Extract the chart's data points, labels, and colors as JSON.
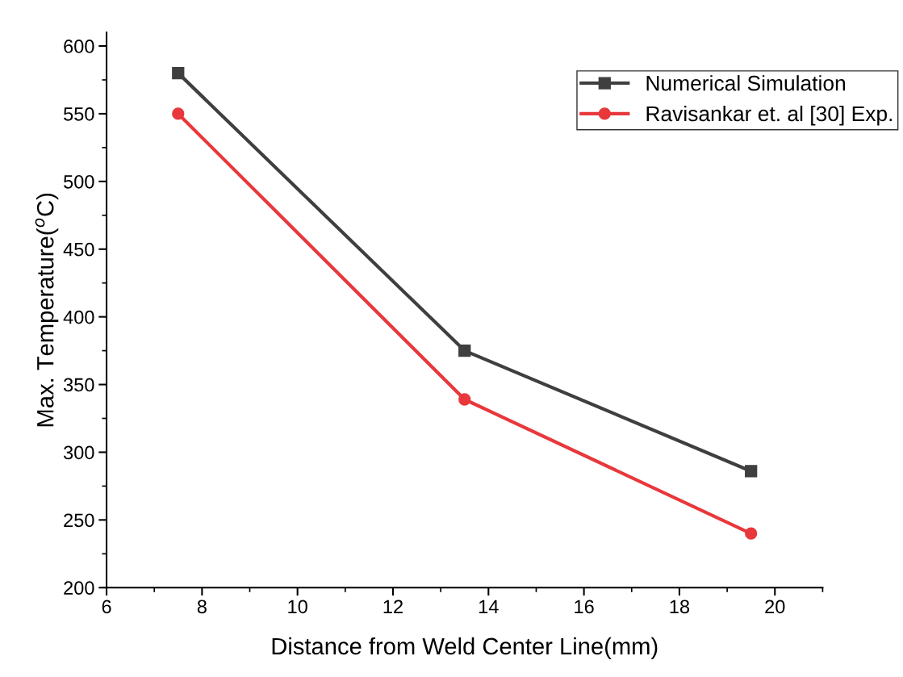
{
  "chart_data": {
    "type": "line",
    "xlabel": "Distance from Weld Center Line(mm)",
    "ylabel": "Max. Temperature($^{o}$C)",
    "x": [
      7.5,
      13.5,
      19.5
    ],
    "series": [
      {
        "name": "Numerical Simulation",
        "color": "#3f3f3f",
        "marker": "square",
        "values": [
          580,
          375,
          286
        ]
      },
      {
        "name": "Ravisankar et. al [30] Exp.",
        "color": "#e8383b",
        "marker": "circle",
        "values": [
          550,
          339,
          240
        ]
      }
    ],
    "xlim": [
      6,
      21
    ],
    "xticks": [
      6,
      8,
      10,
      12,
      14,
      16,
      18,
      20
    ],
    "ylim": [
      200,
      610
    ],
    "yticks": [
      200,
      250,
      300,
      350,
      400,
      450,
      500,
      550,
      600
    ],
    "grid": false,
    "legend": "top right",
    "line_style": "solid"
  }
}
